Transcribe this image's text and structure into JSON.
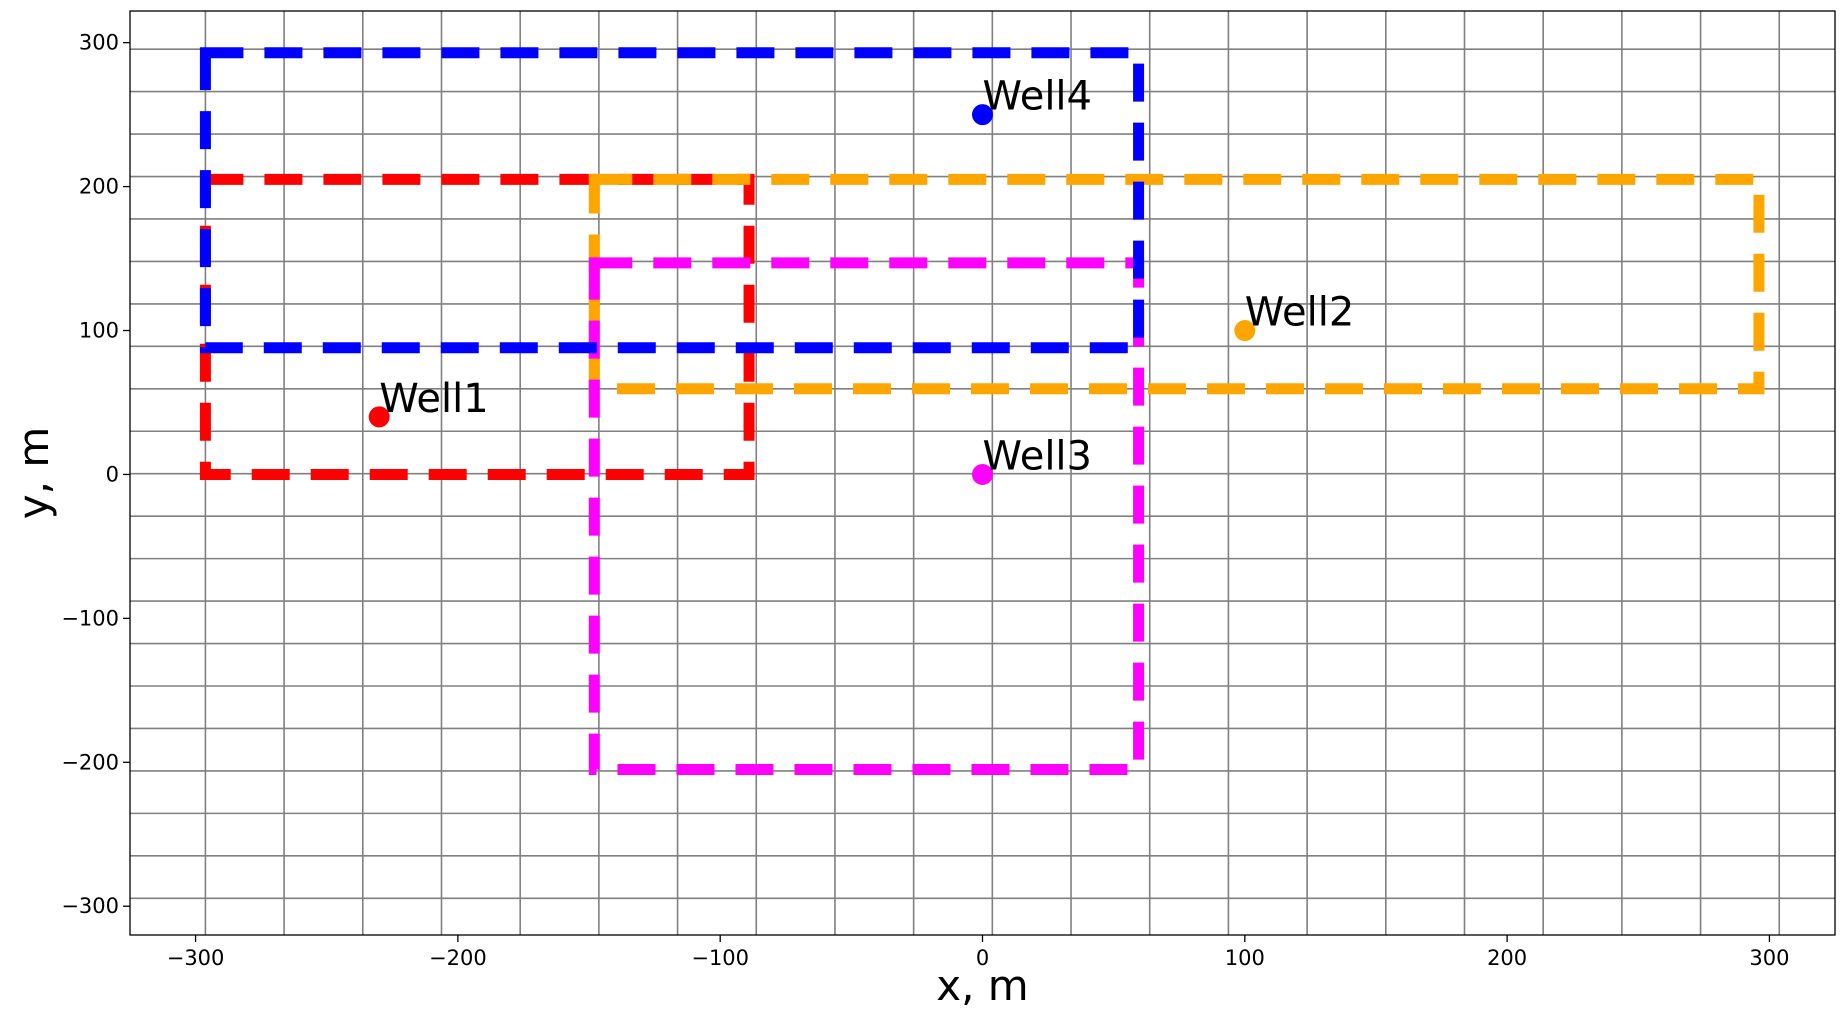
{
  "chart_data": {
    "type": "scatter",
    "title": "",
    "xlabel": "x, m",
    "ylabel": "y, m",
    "xlim": [
      -325,
      325
    ],
    "ylim": [
      -320,
      322
    ],
    "grid": true,
    "grid_color": "#808080",
    "grid_x": [
      -296.25,
      -266.25,
      -236.25,
      -206.25,
      -176.25,
      -146.25,
      -116.25,
      -86.25,
      -56.25,
      -26.25,
      3.75,
      33.75,
      63.75,
      93.75,
      123.75,
      153.75,
      183.75,
      213.75,
      243.75,
      273.75,
      303.75
    ],
    "grid_y": [
      295.5,
      266,
      236.5,
      207,
      177.5,
      148,
      118.5,
      89,
      59.5,
      30,
      0.5,
      -29,
      -58.5,
      -88,
      -117.5,
      -147,
      -176.5,
      -206,
      -235.5,
      -265,
      -294.5
    ],
    "x_ticks": [
      {
        "value": -300,
        "label": "−300"
      },
      {
        "value": -200,
        "label": "−200"
      },
      {
        "value": -100,
        "label": "−100"
      },
      {
        "value": 0,
        "label": "0"
      },
      {
        "value": 100,
        "label": "100"
      },
      {
        "value": 200,
        "label": "200"
      },
      {
        "value": 300,
        "label": "300"
      }
    ],
    "y_ticks": [
      {
        "value": 300,
        "label": "300"
      },
      {
        "value": 200,
        "label": "200"
      },
      {
        "value": 100,
        "label": "100"
      },
      {
        "value": 0,
        "label": "0"
      },
      {
        "value": -100,
        "label": "−100"
      },
      {
        "value": -200,
        "label": "−200"
      },
      {
        "value": -300,
        "label": "−300"
      }
    ],
    "rectangles": [
      {
        "color": "#ff0000",
        "x0": -296.25,
        "x1": -89,
        "y0": 0,
        "y1": 205
      },
      {
        "color": "#ffa500",
        "x0": -148,
        "x1": 296,
        "y0": 59.5,
        "y1": 205
      },
      {
        "color": "#ff00ff",
        "x0": -148,
        "x1": 59.5,
        "y0": -205,
        "y1": 147
      },
      {
        "color": "#0000ff",
        "x0": -296.25,
        "x1": 59.5,
        "y0": 88,
        "y1": 293
      }
    ],
    "wells": [
      {
        "name": "Well1",
        "x": -230,
        "y": 40,
        "color": "#ff0000"
      },
      {
        "name": "Well2",
        "x": 100,
        "y": 100,
        "color": "#ffa500"
      },
      {
        "name": "Well3",
        "x": 0,
        "y": 0,
        "color": "#ff00ff"
      },
      {
        "name": "Well4",
        "x": 0,
        "y": 250,
        "color": "#0000ff"
      }
    ]
  }
}
